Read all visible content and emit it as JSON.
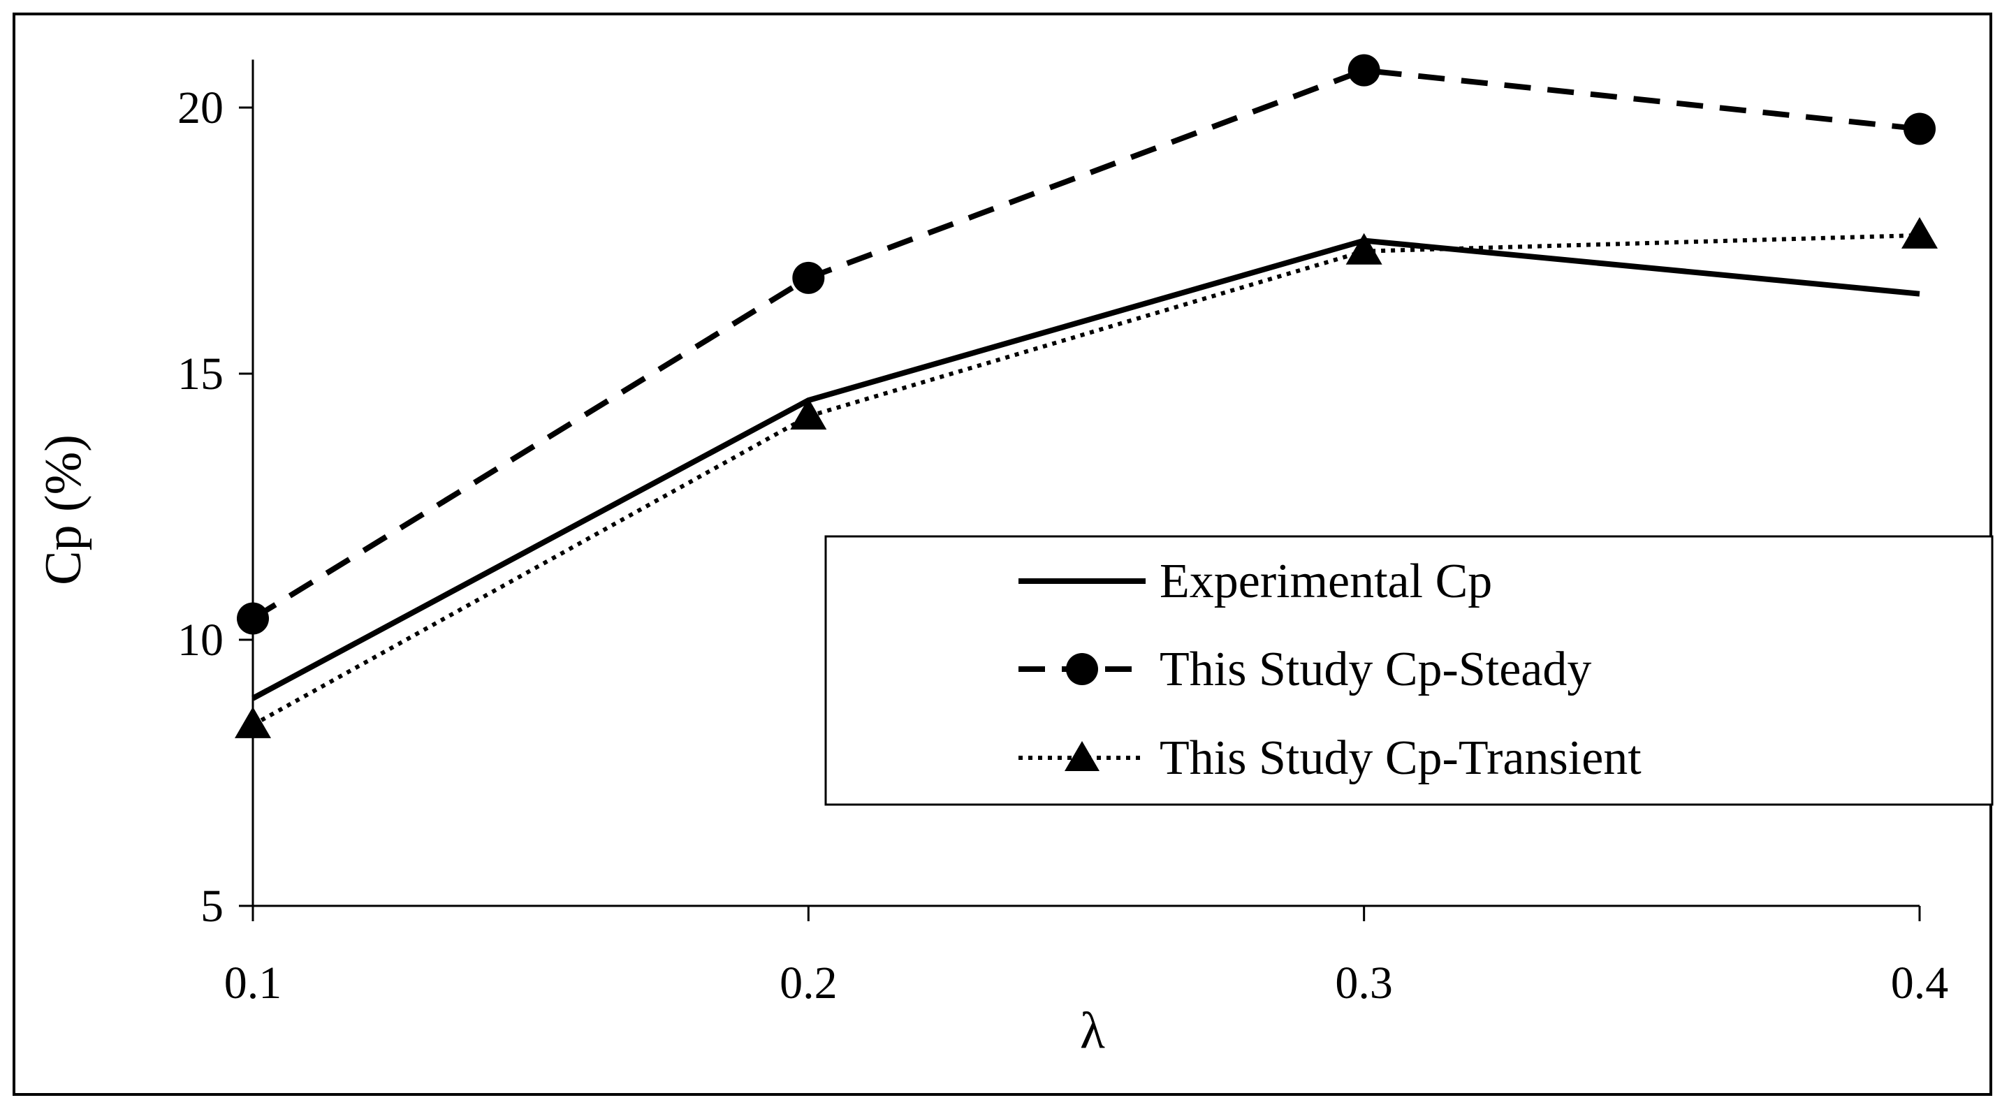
{
  "chart_data": {
    "type": "line",
    "title": "",
    "xlabel": "λ",
    "ylabel": "Cp (%)",
    "x": [
      0.1,
      0.2,
      0.3,
      0.4
    ],
    "x_tick_labels": [
      "0.1",
      "0.2",
      "0.3",
      "0.4"
    ],
    "y_ticks": [
      5,
      10,
      15,
      20
    ],
    "y_tick_labels": [
      "5",
      "10",
      "15",
      "20"
    ],
    "ylim": [
      5,
      20.9
    ],
    "grid": false,
    "legend_position": "center-right",
    "series": [
      {
        "name": "Experimental Cp",
        "values": [
          8.9,
          14.5,
          17.5,
          16.5
        ],
        "line_style": "solid",
        "marker": "none",
        "color": "#000000"
      },
      {
        "name": "This Study Cp-Steady",
        "values": [
          10.4,
          16.8,
          20.7,
          19.6
        ],
        "line_style": "dashed",
        "marker": "circle",
        "color": "#000000"
      },
      {
        "name": "This Study Cp-Transient",
        "values": [
          8.4,
          14.2,
          17.3,
          17.6
        ],
        "line_style": "dotted",
        "marker": "triangle",
        "color": "#000000"
      }
    ]
  }
}
